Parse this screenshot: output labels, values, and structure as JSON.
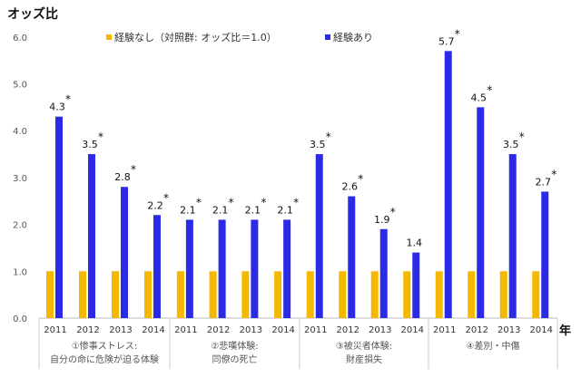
{
  "chart_data": {
    "type": "bar",
    "title": "オッズ比",
    "xlabel": "年",
    "ylim": [
      0,
      6
    ],
    "yticks": [
      "0.0",
      "1.0",
      "2.0",
      "3.0",
      "4.0",
      "5.0",
      "6.0"
    ],
    "legend": {
      "placement": "top",
      "entries": [
        "経験なし（対照群: オッズ比＝1.0）",
        "経験あり"
      ]
    },
    "colors": {
      "control": "#F5B800",
      "exposed": "#2B2BE6"
    },
    "groups": [
      {
        "label_lines": [
          "①惨事ストレス:",
          "自分の命に危険が迫る体験"
        ],
        "years": [
          "2011",
          "2012",
          "2013",
          "2014"
        ],
        "control": [
          1,
          1,
          1,
          1
        ],
        "exposed": [
          4.3,
          3.5,
          2.8,
          2.2
        ],
        "labels": [
          "4.3",
          "3.5",
          "2.8",
          "2.2"
        ],
        "significant": [
          true,
          true,
          true,
          true
        ]
      },
      {
        "label_lines": [
          "②悲嘆体験:",
          "同僚の死亡"
        ],
        "years": [
          "2011",
          "2012",
          "2013",
          "2014"
        ],
        "control": [
          1,
          1,
          1,
          1
        ],
        "exposed": [
          2.1,
          2.1,
          2.1,
          2.1
        ],
        "labels": [
          "2.1",
          "2.1",
          "2.1",
          "2.1"
        ],
        "significant": [
          true,
          true,
          true,
          true
        ]
      },
      {
        "label_lines": [
          "③被災者体験:",
          "財産損失"
        ],
        "years": [
          "2011",
          "2012",
          "2013",
          "2014"
        ],
        "control": [
          1,
          1,
          1,
          1
        ],
        "exposed": [
          3.5,
          2.6,
          1.9,
          1.4
        ],
        "labels": [
          "3.5",
          "2.6",
          "1.9",
          "1.4"
        ],
        "significant": [
          true,
          true,
          true,
          false
        ]
      },
      {
        "label_lines": [
          "④差別・中傷"
        ],
        "years": [
          "2011",
          "2012",
          "2013",
          "2014"
        ],
        "control": [
          1,
          1,
          1,
          1
        ],
        "exposed": [
          5.7,
          4.5,
          3.5,
          2.7
        ],
        "labels": [
          "5.7",
          "4.5",
          "3.5",
          "2.7"
        ],
        "significant": [
          true,
          true,
          true,
          true
        ]
      }
    ],
    "star": "*"
  }
}
